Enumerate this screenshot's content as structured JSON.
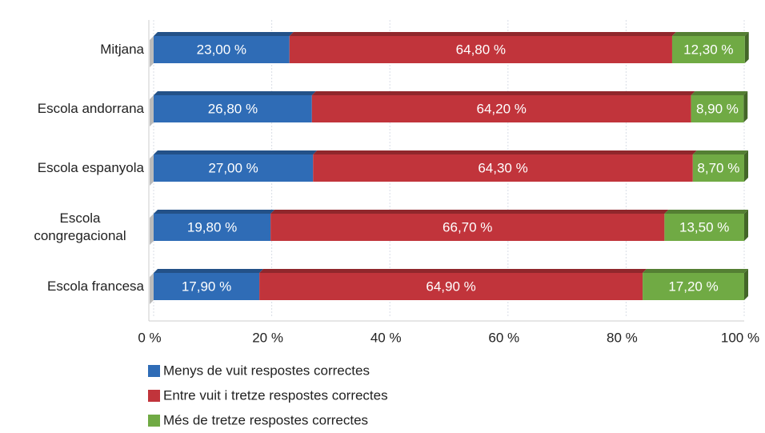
{
  "chart_data": {
    "type": "stacked-bar-horizontal",
    "categories": [
      "Mitjana",
      "Escola andorrana",
      "Escola espanyola",
      "Escola congregacional",
      "Escola francesa"
    ],
    "series": [
      {
        "name": "Menys de vuit respostes correctes",
        "color": "#2f6cb6",
        "values": [
          23.0,
          26.8,
          27.0,
          19.8,
          17.9
        ],
        "value_labels": [
          "23,00 %",
          "26,80 %",
          "27,00 %",
          "19,80 %",
          "17,90 %"
        ]
      },
      {
        "name": "Entre vuit i tretze respostes correctes",
        "color": "#c1343b",
        "values": [
          64.8,
          64.2,
          64.3,
          66.7,
          64.9
        ],
        "value_labels": [
          "64,80 %",
          "64,20 %",
          "64,30 %",
          "66,70 %",
          "64,90 %"
        ]
      },
      {
        "name": "Més de tretze respostes correctes",
        "color": "#70aa44",
        "values": [
          12.3,
          8.9,
          8.7,
          13.5,
          17.2
        ],
        "value_labels": [
          "12,30 %",
          "8,90 %",
          "8,70 %",
          "13,50 %",
          "17,20 %"
        ]
      }
    ],
    "xlim": [
      0,
      100
    ],
    "xticks": [
      {
        "value": 0,
        "label": "0 %"
      },
      {
        "value": 20,
        "label": "20 %"
      },
      {
        "value": 40,
        "label": "40 %"
      },
      {
        "value": 60,
        "label": "60 %"
      },
      {
        "value": 80,
        "label": "80 %"
      },
      {
        "value": 100,
        "label": "100 %"
      }
    ],
    "grid": true
  }
}
